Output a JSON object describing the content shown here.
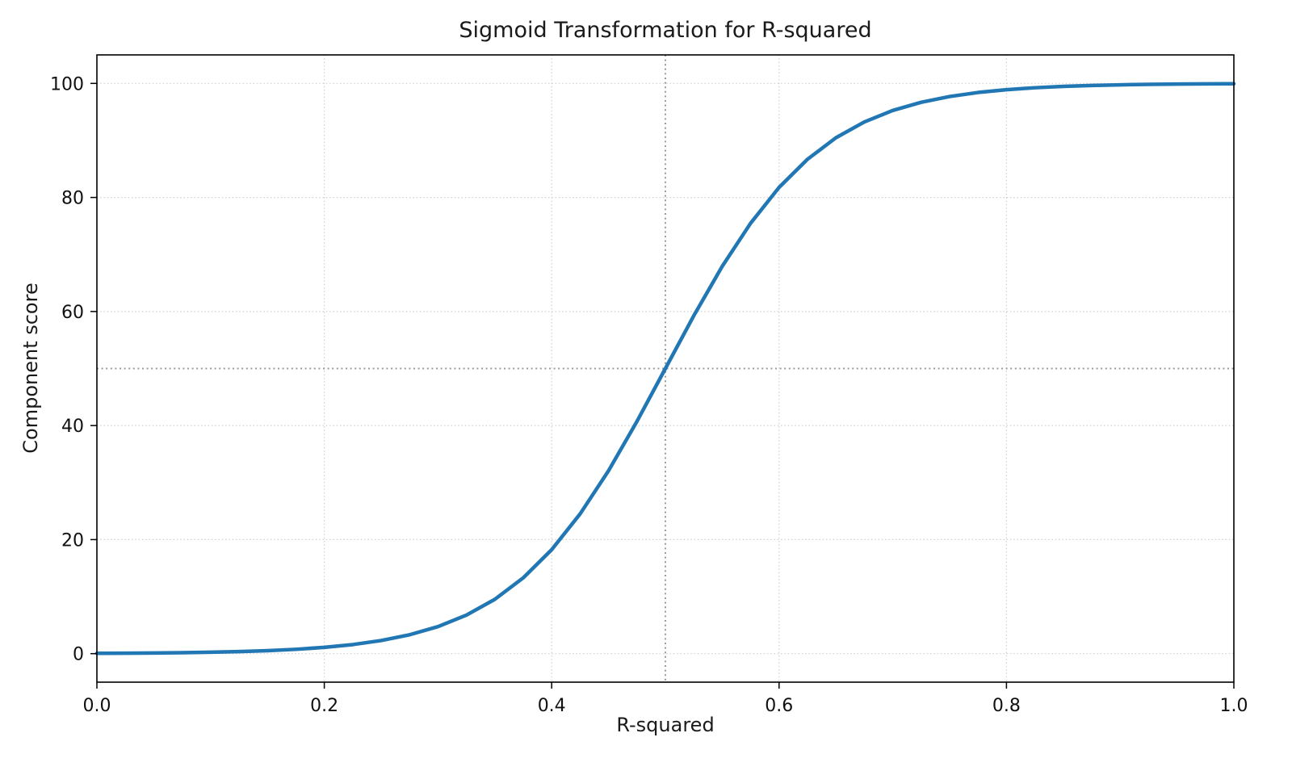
{
  "chart_data": {
    "type": "line",
    "title": "Sigmoid Transformation for R-squared",
    "xlabel": "R-squared",
    "ylabel": "Component score",
    "xlim": [
      0,
      1
    ],
    "ylim": [
      -5,
      105
    ],
    "x_ticks": [
      0.0,
      0.2,
      0.4,
      0.6,
      0.8,
      1.0
    ],
    "x_tick_labels": [
      "0.0",
      "0.2",
      "0.4",
      "0.6",
      "0.8",
      "1.0"
    ],
    "y_ticks": [
      0,
      20,
      40,
      60,
      80,
      100
    ],
    "y_tick_labels": [
      "0",
      "20",
      "40",
      "60",
      "80",
      "100"
    ],
    "grid": true,
    "grid_style": "dotted",
    "legend": "none",
    "series": [
      {
        "name": "sigmoid-curve",
        "color": "#2077b4",
        "line_width": 4.5,
        "x": [
          0.0,
          0.025,
          0.05,
          0.075,
          0.1,
          0.125,
          0.15,
          0.175,
          0.2,
          0.225,
          0.25,
          0.275,
          0.3,
          0.325,
          0.35,
          0.375,
          0.4,
          0.425,
          0.45,
          0.475,
          0.5,
          0.525,
          0.55,
          0.575,
          0.6,
          0.625,
          0.65,
          0.675,
          0.7,
          0.725,
          0.75,
          0.775,
          0.8,
          0.825,
          0.85,
          0.875,
          0.9,
          0.925,
          0.95,
          0.975,
          1.0
        ],
        "y": [
          0.06,
          0.08,
          0.12,
          0.17,
          0.25,
          0.36,
          0.52,
          0.76,
          1.1,
          1.59,
          2.3,
          3.31,
          4.74,
          6.76,
          9.53,
          13.3,
          18.24,
          24.51,
          32.08,
          40.73,
          50.0,
          59.27,
          67.92,
          75.49,
          81.76,
          86.7,
          90.47,
          93.24,
          95.26,
          96.69,
          97.7,
          98.41,
          98.9,
          99.24,
          99.48,
          99.64,
          99.75,
          99.83,
          99.88,
          99.92,
          99.94
        ]
      }
    ],
    "reference_lines": [
      {
        "axis": "x",
        "value": 0.5,
        "style": "dotted",
        "color": "#9b9b9b"
      },
      {
        "axis": "y",
        "value": 50,
        "style": "dotted",
        "color": "#9b9b9b"
      }
    ],
    "sigmoid_fit": {
      "midpoint": 0.5,
      "steepness": 15,
      "scale": 100
    }
  }
}
